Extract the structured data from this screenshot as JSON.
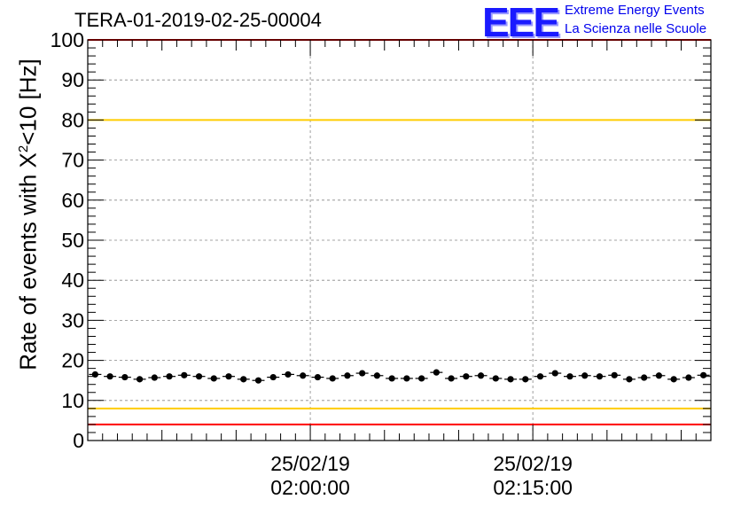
{
  "header": {
    "run_title": "TERA-01-2019-02-25-00004"
  },
  "logo": {
    "mark": "EEE",
    "line1": "Extreme Energy Events",
    "line2": "La Scienza nelle Scuole"
  },
  "axis": {
    "ylabel_main": "Rate of events with X",
    "ylabel_sup": "2",
    "ylabel_tail": "<10 [Hz]"
  },
  "colors": {
    "limit_red": "#ff0000",
    "limit_yellow": "#ffcc00",
    "points": "#000000",
    "grid": "#888888",
    "logo_blue": "#0000ee"
  },
  "chart_data": {
    "type": "scatter",
    "title": "TERA-01-2019-02-25-00004",
    "ylabel": "Rate of events with X^2<10 [Hz]",
    "xlabel": "",
    "ylim": [
      0,
      100
    ],
    "xlim_minutes": [
      0,
      42
    ],
    "yticks": [
      0,
      10,
      20,
      30,
      40,
      50,
      60,
      70,
      80,
      90,
      100
    ],
    "xticks": [
      {
        "minute": 15,
        "date": "25/02/19",
        "time": "02:00:00"
      },
      {
        "minute": 30,
        "date": "25/02/19",
        "time": "02:15:00"
      }
    ],
    "grid": true,
    "reference_lines": [
      {
        "y": 100,
        "color": "red"
      },
      {
        "y": 80,
        "color": "yellow"
      },
      {
        "y": 8,
        "color": "yellow"
      },
      {
        "y": 4,
        "color": "red"
      }
    ],
    "series": [
      {
        "x_minutes": [
          0.5,
          1.5,
          2.5,
          3.5,
          4.5,
          5.5,
          6.5,
          7.5,
          8.5,
          9.5,
          10.5,
          11.5,
          12.5,
          13.5,
          14.5,
          15.5,
          16.5,
          17.5,
          18.5,
          19.5,
          20.5,
          21.5,
          22.5,
          23.5,
          24.5,
          25.5,
          26.5,
          27.5,
          28.5,
          29.5,
          30.5,
          31.5,
          32.5,
          33.5,
          34.5,
          35.5,
          36.5,
          37.5,
          38.5,
          39.5,
          40.5,
          41.5
        ],
        "values": [
          16.5,
          16.0,
          15.8,
          15.3,
          15.7,
          16.0,
          16.3,
          16.0,
          15.5,
          16.0,
          15.3,
          15.0,
          15.8,
          16.5,
          16.2,
          15.8,
          15.5,
          16.2,
          16.8,
          16.2,
          15.5,
          15.5,
          15.5,
          17.0,
          15.5,
          16.0,
          16.2,
          15.5,
          15.3,
          15.3,
          16.0,
          16.8,
          16.0,
          16.2,
          16.0,
          16.3,
          15.3,
          15.7,
          16.2,
          15.3,
          15.7,
          16.3
        ],
        "errors": [
          0.6,
          0.6,
          0.6,
          0.6,
          0.6,
          0.6,
          0.6,
          0.6,
          0.6,
          0.6,
          0.6,
          0.6,
          0.6,
          0.6,
          0.6,
          0.6,
          0.6,
          0.6,
          0.6,
          0.6,
          0.6,
          0.6,
          0.6,
          0.6,
          0.6,
          0.6,
          0.6,
          0.6,
          0.6,
          0.6,
          0.6,
          0.6,
          0.6,
          0.6,
          0.6,
          0.6,
          0.6,
          0.6,
          0.6,
          0.6,
          0.6,
          0.6
        ]
      }
    ]
  }
}
